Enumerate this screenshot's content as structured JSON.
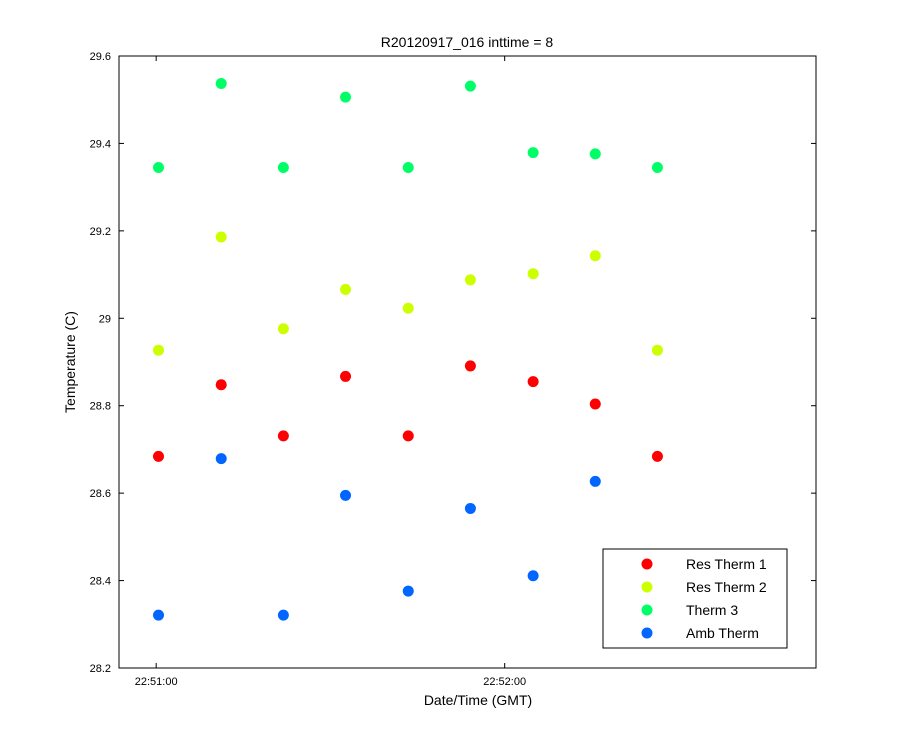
{
  "chart_data": {
    "type": "scatter",
    "title": "R20120917_016 inttime = 8",
    "xlabel": "Date/Time (GMT)",
    "ylabel": "Temperature (C)",
    "x_tick_labels": [
      "22:51:00",
      "22:52:00"
    ],
    "x_tick_values_s": [
      0,
      60
    ],
    "xlim_s": [
      -6.4,
      113.6
    ],
    "ylim": [
      28.2,
      29.6
    ],
    "y_ticks": [
      "28.2",
      "28.4",
      "28.6",
      "28.8",
      "29",
      "29.2",
      "29.4",
      "29.6"
    ],
    "grid": false,
    "legend_position": "bottom-right",
    "x": [
      0.4,
      11.2,
      21.9,
      32.6,
      43.4,
      54.1,
      64.9,
      75.6,
      86.3
    ],
    "series": [
      {
        "name": "Res Therm 1",
        "color": "#ff0000",
        "values": [
          28.684,
          28.848,
          28.731,
          28.867,
          28.731,
          28.891,
          28.855,
          28.804,
          28.684
        ]
      },
      {
        "name": "Res Therm 2",
        "color": "#ccff00",
        "values": [
          28.927,
          29.186,
          28.976,
          29.066,
          29.023,
          29.088,
          29.102,
          29.143,
          28.927
        ]
      },
      {
        "name": "Therm 3",
        "color": "#00ff66",
        "values": [
          29.345,
          29.537,
          29.345,
          29.506,
          29.345,
          29.531,
          29.379,
          29.376,
          29.345
        ]
      },
      {
        "name": "Amb Therm",
        "color": "#0066ff",
        "values": [
          28.321,
          28.679,
          28.321,
          28.595,
          28.376,
          28.565,
          28.411,
          28.627,
          null
        ]
      }
    ]
  }
}
